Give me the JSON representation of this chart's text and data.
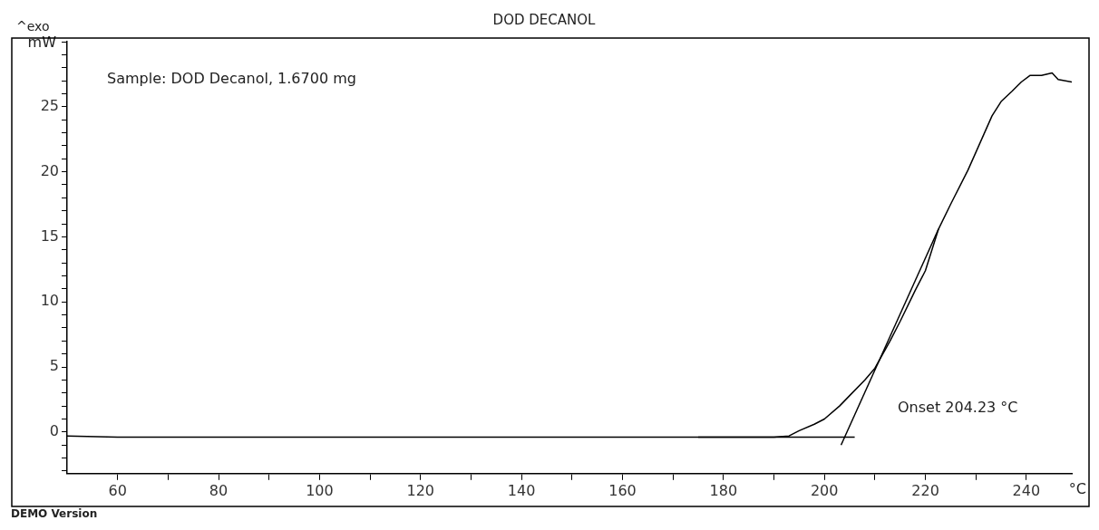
{
  "chart_data": {
    "type": "line",
    "title": "DOD DECANOL",
    "xlabel": "°C",
    "ylabel": "mW",
    "annotations": [
      "^exo",
      "Sample: DOD Decanol, 1.6700 mg",
      "Onset 204.23 °C",
      "DEMO Version"
    ],
    "xlim": [
      50,
      249
    ],
    "ylim": [
      -3.2,
      30
    ],
    "xticks": [
      60,
      {
        "value": 70,
        "label": null
      },
      80,
      {
        "value": 90,
        "label": null
      },
      100,
      {
        "value": 110,
        "label": null
      },
      120,
      {
        "value": 130,
        "label": null
      },
      140,
      {
        "value": 150,
        "label": null
      },
      160,
      {
        "value": 170,
        "label": null
      },
      180,
      {
        "value": 190,
        "label": null
      },
      200,
      {
        "value": 210,
        "label": null
      },
      220,
      {
        "value": 230,
        "label": null
      },
      240
    ],
    "yticks": [
      {
        "value": -3,
        "label": null
      },
      {
        "value": -2,
        "label": null
      },
      {
        "value": -1,
        "label": null
      },
      0,
      {
        "value": 1,
        "label": null
      },
      {
        "value": 2,
        "label": null
      },
      {
        "value": 3,
        "label": null
      },
      {
        "value": 4,
        "label": null
      },
      5,
      {
        "value": 6,
        "label": null
      },
      {
        "value": 7,
        "label": null
      },
      {
        "value": 8,
        "label": null
      },
      {
        "value": 9,
        "label": null
      },
      10,
      {
        "value": 11,
        "label": null
      },
      {
        "value": 12,
        "label": null
      },
      {
        "value": 13,
        "label": null
      },
      {
        "value": 14,
        "label": null
      },
      15,
      {
        "value": 16,
        "label": null
      },
      {
        "value": 17,
        "label": null
      },
      {
        "value": 18,
        "label": null
      },
      {
        "value": 19,
        "label": null
      },
      20,
      {
        "value": 21,
        "label": null
      },
      {
        "value": 22,
        "label": null
      },
      {
        "value": 23,
        "label": null
      },
      {
        "value": 24,
        "label": null
      },
      25,
      {
        "value": 26,
        "label": null
      },
      {
        "value": 27,
        "label": null
      },
      {
        "value": 28,
        "label": null
      },
      {
        "value": 29,
        "label": null
      },
      {
        "value": 30,
        "label": null
      }
    ],
    "grid": false,
    "legend": false,
    "marker": "none",
    "line_style": "solid",
    "series": [
      {
        "color": "#000000",
        "x": [
          50,
          60,
          80,
          100,
          120,
          140,
          160,
          175,
          185,
          190,
          193,
          195,
          198,
          200,
          203,
          205,
          208,
          210,
          213,
          215,
          218,
          220,
          222.6,
          225,
          228.4,
          230,
          233.2,
          235,
          237.2,
          239,
          240.7,
          243,
          245.1,
          246.3,
          249
        ],
        "values": [
          -0.3,
          -0.4,
          -0.4,
          -0.4,
          -0.4,
          -0.4,
          -0.4,
          -0.4,
          -0.4,
          -0.4,
          -0.3,
          0.1,
          0.6,
          1.0,
          2.0,
          2.8,
          4.0,
          4.9,
          7.0,
          8.5,
          10.9,
          12.4,
          15.6,
          17.5,
          20.1,
          21.5,
          24.3,
          25.4,
          26.2,
          26.9,
          27.4,
          27.4,
          27.6,
          27.1,
          26.9
        ]
      },
      {
        "type": "line",
        "color": "#000000",
        "x": [
          203.3,
          222.6
        ],
        "values": [
          -1.0,
          15.6
        ]
      },
      {
        "type": "line",
        "color": "#000000",
        "x": [
          175,
          206
        ],
        "values": [
          -0.4,
          -0.4
        ]
      }
    ]
  }
}
